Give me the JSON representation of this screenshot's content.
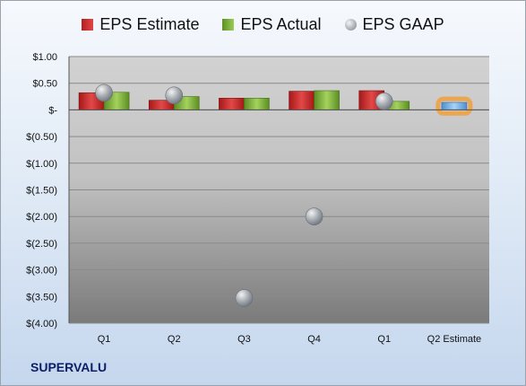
{
  "chart_data": {
    "type": "bar",
    "categories": [
      "Q1",
      "Q2",
      "Q3",
      "Q4",
      "Q1",
      "Q2 Estimate"
    ],
    "series": [
      {
        "name": "EPS Estimate",
        "kind": "bar",
        "color": "#c62828",
        "values": [
          0.32,
          0.18,
          0.22,
          0.35,
          0.36,
          0.14
        ]
      },
      {
        "name": "EPS Actual",
        "kind": "bar",
        "color": "#7cb342",
        "values": [
          0.33,
          0.25,
          0.22,
          0.36,
          0.16,
          null
        ]
      },
      {
        "name": "EPS GAAP",
        "kind": "marker",
        "color": "#9ea4ab",
        "values": [
          0.32,
          0.27,
          -3.53,
          -2.0,
          0.16,
          null
        ]
      }
    ],
    "highlight": {
      "category_index": 5,
      "bar_color": "#7fb7e8",
      "glow_color": "#f39c32"
    },
    "yticks": [
      "$1.00",
      "$0.50",
      "$-",
      "$(0.50)",
      "$(1.00)",
      "$(1.50)",
      "$(2.00)",
      "$(2.50)",
      "$(3.00)",
      "$(3.50)",
      "$(4.00)"
    ],
    "ylim": [
      -4.0,
      1.0
    ],
    "grid": true,
    "legend": "top-center"
  },
  "company": "SUPERVALU"
}
